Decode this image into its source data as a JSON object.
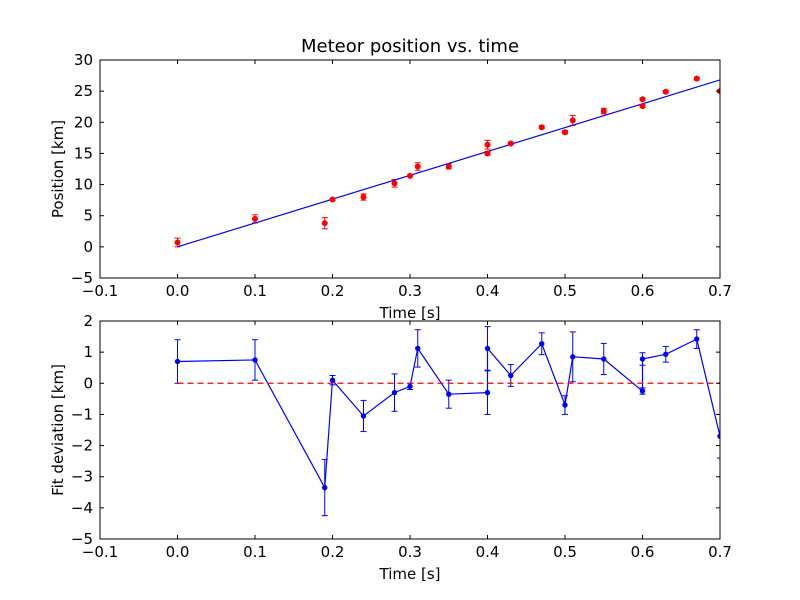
{
  "chart_data": [
    {
      "type": "scatter",
      "title": "Meteor position vs. time",
      "xlabel": "Time [s]",
      "ylabel": "Position [km]",
      "xlim": [
        -0.1,
        0.7
      ],
      "ylim": [
        -5,
        30
      ],
      "xticks": [
        "−0.1",
        "0.0",
        "0.1",
        "0.2",
        "0.3",
        "0.4",
        "0.5",
        "0.6",
        "0.7"
      ],
      "yticks": [
        "−5",
        "0",
        "5",
        "10",
        "15",
        "20",
        "25",
        "30"
      ],
      "xtick_values": [
        -0.1,
        0,
        0.1,
        0.2,
        0.3,
        0.4,
        0.5,
        0.6,
        0.7
      ],
      "ytick_values": [
        -5,
        0,
        5,
        10,
        15,
        20,
        25,
        30
      ],
      "grid": false,
      "series": [
        {
          "kind": "errorbar-points",
          "color": "#ff0000",
          "points": [
            {
              "x": 0.0,
              "y": 0.7,
              "err": 0.7
            },
            {
              "x": 0.1,
              "y": 4.5,
              "err": 0.65
            },
            {
              "x": 0.19,
              "y": 3.8,
              "err": 0.9
            },
            {
              "x": 0.2,
              "y": 7.6,
              "err": 0.15
            },
            {
              "x": 0.24,
              "y": 8.0,
              "err": 0.5
            },
            {
              "x": 0.28,
              "y": 10.2,
              "err": 0.6
            },
            {
              "x": 0.3,
              "y": 11.4,
              "err": 0.1
            },
            {
              "x": 0.31,
              "y": 12.9,
              "err": 0.6
            },
            {
              "x": 0.35,
              "y": 12.9,
              "err": 0.4
            },
            {
              "x": 0.4,
              "y": 15.0,
              "err": 0.3
            },
            {
              "x": 0.4,
              "y": 16.4,
              "err": 0.7
            },
            {
              "x": 0.43,
              "y": 16.6,
              "err": 0.2
            },
            {
              "x": 0.47,
              "y": 19.2,
              "err": 0.25
            },
            {
              "x": 0.5,
              "y": 18.4,
              "err": 0.25
            },
            {
              "x": 0.51,
              "y": 20.3,
              "err": 0.8
            },
            {
              "x": 0.55,
              "y": 21.8,
              "err": 0.45
            },
            {
              "x": 0.6,
              "y": 22.6,
              "err": 0.2
            },
            {
              "x": 0.6,
              "y": 23.7,
              "err": 0.2
            },
            {
              "x": 0.63,
              "y": 24.9,
              "err": 0.2
            },
            {
              "x": 0.67,
              "y": 27.0,
              "err": 0.2
            },
            {
              "x": 0.7,
              "y": 25.0,
              "err": 0.2
            }
          ]
        },
        {
          "kind": "line",
          "color": "#0000ff",
          "x": [
            0.0,
            0.7
          ],
          "y": [
            0.0,
            26.8
          ]
        }
      ]
    },
    {
      "type": "line",
      "title": "",
      "xlabel": "Time [s]",
      "ylabel": "Fit deviation [km]",
      "xlim": [
        -0.1,
        0.7
      ],
      "ylim": [
        -5,
        2
      ],
      "xticks": [
        "−0.1",
        "0.0",
        "0.1",
        "0.2",
        "0.3",
        "0.4",
        "0.5",
        "0.6",
        "0.7"
      ],
      "yticks": [
        "−5",
        "−4",
        "−3",
        "−2",
        "−1",
        "0",
        "1",
        "2"
      ],
      "xtick_values": [
        -0.1,
        0,
        0.1,
        0.2,
        0.3,
        0.4,
        0.5,
        0.6,
        0.7
      ],
      "ytick_values": [
        -5,
        -4,
        -3,
        -2,
        -1,
        0,
        1,
        2
      ],
      "grid": false,
      "series": [
        {
          "kind": "errorbar-line",
          "color": "#0000ff",
          "x": [
            0.0,
            0.1,
            0.19,
            0.2,
            0.24,
            0.28,
            0.3,
            0.31,
            0.35,
            0.4,
            0.4,
            0.43,
            0.47,
            0.5,
            0.51,
            0.55,
            0.6,
            0.6,
            0.63,
            0.67,
            0.7
          ],
          "y": [
            0.7,
            0.75,
            -3.35,
            0.1,
            -1.05,
            -0.3,
            -0.1,
            1.12,
            -0.35,
            -0.3,
            1.12,
            0.25,
            1.27,
            -0.7,
            0.85,
            0.78,
            -0.25,
            0.78,
            0.93,
            1.42,
            -1.7
          ],
          "err": [
            0.7,
            0.65,
            0.9,
            0.15,
            0.5,
            0.6,
            0.1,
            0.6,
            0.45,
            0.7,
            0.7,
            0.35,
            0.35,
            0.3,
            0.8,
            0.5,
            0.1,
            0.2,
            0.25,
            0.3,
            0.7
          ]
        },
        {
          "kind": "reference-line",
          "color": "#ff0000",
          "dashed": true,
          "x": [
            0.0,
            0.7
          ],
          "y": [
            0.0,
            0.0
          ]
        }
      ]
    }
  ]
}
